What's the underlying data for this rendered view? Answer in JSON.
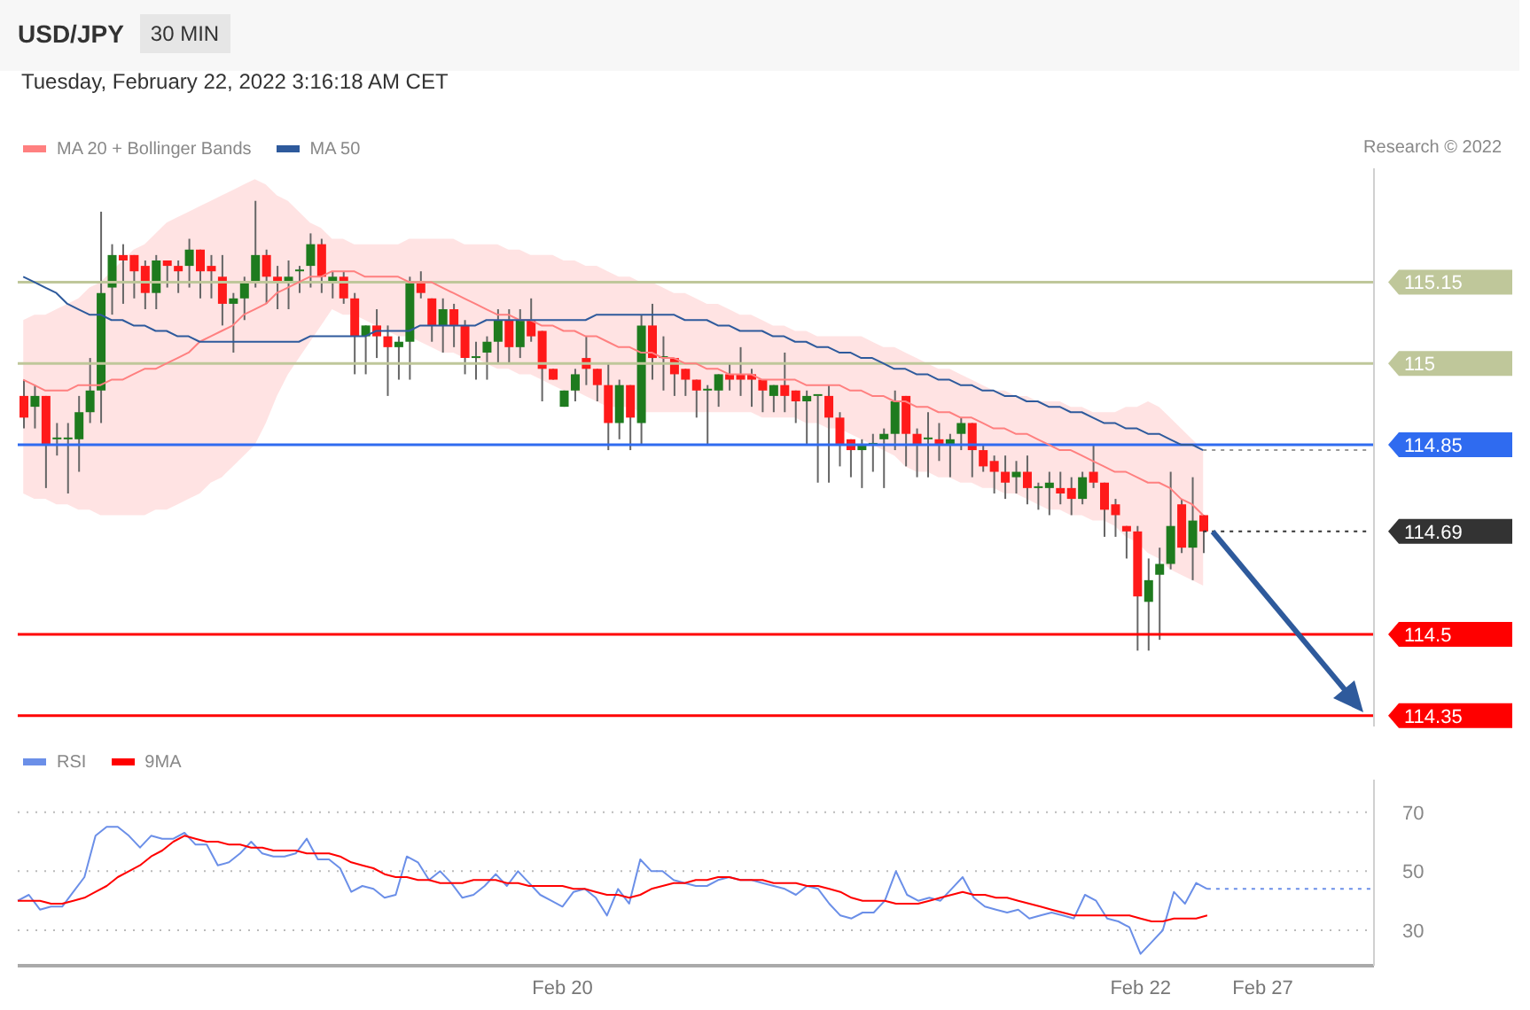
{
  "chart_data": [
    {
      "type": "candlestick",
      "title": "USD/JPY",
      "subtitle": "Tuesday, February 22, 2022 3:16:18 AM CET",
      "annotations": [
        "30 MIN",
        "Research © 2022"
      ],
      "categories": [
        null,
        null,
        null,
        null,
        null,
        null,
        null,
        null,
        null,
        null,
        null,
        null,
        null,
        null,
        null,
        null,
        null,
        null,
        null,
        null,
        null,
        null,
        null,
        null,
        null,
        null,
        null,
        null,
        null,
        null,
        null,
        null,
        null,
        null,
        null,
        null,
        null,
        null,
        null,
        null,
        null,
        null,
        null,
        null,
        null,
        null,
        null,
        null,
        null,
        null,
        null,
        null,
        null,
        null,
        null,
        null,
        null,
        null,
        null,
        null,
        null,
        null,
        null,
        null,
        null,
        null,
        null,
        null,
        null,
        null,
        null,
        null,
        null,
        null,
        null,
        null,
        null,
        null,
        null,
        null,
        null,
        null,
        null,
        null,
        null,
        null,
        null,
        null,
        null,
        null,
        null,
        null,
        null,
        null,
        null,
        null,
        null,
        null,
        null,
        null,
        null,
        null,
        null,
        null,
        null,
        null,
        null,
        null,
        null,
        null,
        null,
        null,
        null,
        null,
        null,
        null,
        null,
        null,
        null,
        null,
        null,
        null,
        null
      ],
      "ohlc": [
        [
          114.94,
          114.97,
          114.88,
          114.9
        ],
        [
          114.92,
          114.96,
          114.88,
          114.94
        ],
        [
          114.94,
          114.94,
          114.77,
          114.85
        ],
        [
          114.86,
          114.89,
          114.83,
          114.86
        ],
        [
          114.86,
          114.89,
          114.76,
          114.86
        ],
        [
          114.86,
          114.94,
          114.8,
          114.91
        ],
        [
          114.91,
          115.01,
          114.89,
          114.95
        ],
        [
          114.95,
          115.28,
          114.89,
          115.13
        ],
        [
          115.14,
          115.22,
          115.09,
          115.2
        ],
        [
          115.2,
          115.22,
          115.11,
          115.19
        ],
        [
          115.2,
          115.2,
          115.12,
          115.17
        ],
        [
          115.18,
          115.19,
          115.1,
          115.13
        ],
        [
          115.13,
          115.2,
          115.1,
          115.19
        ],
        [
          115.19,
          115.19,
          115.14,
          115.18
        ],
        [
          115.18,
          115.19,
          115.13,
          115.17
        ],
        [
          115.18,
          115.23,
          115.14,
          115.21
        ],
        [
          115.21,
          115.21,
          115.12,
          115.17
        ],
        [
          115.18,
          115.2,
          115.12,
          115.17
        ],
        [
          115.16,
          115.2,
          115.07,
          115.11
        ],
        [
          115.11,
          115.13,
          115.02,
          115.12
        ],
        [
          115.12,
          115.16,
          115.08,
          115.15
        ],
        [
          115.15,
          115.3,
          115.14,
          115.2
        ],
        [
          115.2,
          115.21,
          115.11,
          115.16
        ],
        [
          115.16,
          115.18,
          115.1,
          115.15
        ],
        [
          115.15,
          115.19,
          115.1,
          115.16
        ],
        [
          115.17,
          115.18,
          115.13,
          115.17
        ],
        [
          115.18,
          115.24,
          115.14,
          115.22
        ],
        [
          115.22,
          115.23,
          115.13,
          115.16
        ],
        [
          115.15,
          115.17,
          115.12,
          115.16
        ],
        [
          115.16,
          115.17,
          115.11,
          115.12
        ],
        [
          115.12,
          115.13,
          114.98,
          115.05
        ],
        [
          115.05,
          115.07,
          114.98,
          115.07
        ],
        [
          115.07,
          115.1,
          115.01,
          115.05
        ],
        [
          115.05,
          115.07,
          114.94,
          115.03
        ],
        [
          115.03,
          115.05,
          114.97,
          115.04
        ],
        [
          115.04,
          115.16,
          114.97,
          115.15
        ],
        [
          115.15,
          115.17,
          115.12,
          115.13
        ],
        [
          115.12,
          115.12,
          115.04,
          115.07
        ],
        [
          115.07,
          115.12,
          115.02,
          115.1
        ],
        [
          115.1,
          115.11,
          115.03,
          115.07
        ],
        [
          115.07,
          115.08,
          114.98,
          115.01
        ],
        [
          115.01,
          115.04,
          114.97,
          115.01
        ],
        [
          115.02,
          115.05,
          114.97,
          115.04
        ],
        [
          115.04,
          115.1,
          115.0,
          115.08
        ],
        [
          115.08,
          115.1,
          115.0,
          115.03
        ],
        [
          115.03,
          115.1,
          115.01,
          115.08
        ],
        [
          115.08,
          115.12,
          115.04,
          115.05
        ],
        [
          115.06,
          115.06,
          114.93,
          114.99
        ],
        [
          114.99,
          114.99,
          114.97,
          114.97
        ],
        [
          114.92,
          114.95,
          114.92,
          114.95
        ],
        [
          114.95,
          114.99,
          114.93,
          114.98
        ],
        [
          115.01,
          115.05,
          114.96,
          114.99
        ],
        [
          114.99,
          114.99,
          114.93,
          114.96
        ],
        [
          114.96,
          115.0,
          114.84,
          114.89
        ],
        [
          114.89,
          114.97,
          114.86,
          114.96
        ],
        [
          114.96,
          114.96,
          114.84,
          114.9
        ],
        [
          114.89,
          115.09,
          114.85,
          115.07
        ],
        [
          115.07,
          115.11,
          114.97,
          115.01
        ],
        [
          115.01,
          115.05,
          114.95,
          115.01
        ],
        [
          115.01,
          115.01,
          114.94,
          114.98
        ],
        [
          114.99,
          114.99,
          114.94,
          114.97
        ],
        [
          114.97,
          114.97,
          114.9,
          114.95
        ],
        [
          114.95,
          114.96,
          114.85,
          114.95
        ],
        [
          114.95,
          114.98,
          114.92,
          114.98
        ],
        [
          114.98,
          115.0,
          114.95,
          114.97
        ],
        [
          114.98,
          115.03,
          114.94,
          114.97
        ],
        [
          114.98,
          114.99,
          114.92,
          114.97
        ],
        [
          114.97,
          114.97,
          114.91,
          114.95
        ],
        [
          114.94,
          114.96,
          114.91,
          114.96
        ],
        [
          114.96,
          115.02,
          114.91,
          114.94
        ],
        [
          114.95,
          114.95,
          114.89,
          114.93
        ],
        [
          114.93,
          114.95,
          114.85,
          114.94
        ],
        [
          114.94,
          114.94,
          114.78,
          114.94
        ],
        [
          114.94,
          114.96,
          114.78,
          114.9
        ],
        [
          114.9,
          114.91,
          114.81,
          114.85
        ],
        [
          114.86,
          114.86,
          114.79,
          114.84
        ],
        [
          114.84,
          114.86,
          114.77,
          114.85
        ],
        [
          114.85,
          114.87,
          114.8,
          114.85
        ],
        [
          114.86,
          114.88,
          114.77,
          114.87
        ],
        [
          114.87,
          114.95,
          114.84,
          114.93
        ],
        [
          114.94,
          114.94,
          114.81,
          114.87
        ],
        [
          114.87,
          114.88,
          114.79,
          114.85
        ],
        [
          114.86,
          114.91,
          114.79,
          114.86
        ],
        [
          114.86,
          114.89,
          114.82,
          114.85
        ],
        [
          114.85,
          114.87,
          114.79,
          114.86
        ],
        [
          114.87,
          114.9,
          114.84,
          114.89
        ],
        [
          114.89,
          114.89,
          114.79,
          114.84
        ],
        [
          114.84,
          114.85,
          114.8,
          114.81
        ],
        [
          114.82,
          114.83,
          114.76,
          114.8
        ],
        [
          114.8,
          114.83,
          114.75,
          114.78
        ],
        [
          114.79,
          114.82,
          114.76,
          114.8
        ],
        [
          114.8,
          114.83,
          114.74,
          114.77
        ],
        [
          114.77,
          114.78,
          114.73,
          114.77
        ],
        [
          114.77,
          114.8,
          114.72,
          114.78
        ],
        [
          114.77,
          114.8,
          114.74,
          114.76
        ],
        [
          114.77,
          114.79,
          114.72,
          114.75
        ],
        [
          114.75,
          114.8,
          114.74,
          114.79
        ],
        [
          114.8,
          114.85,
          114.77,
          114.78
        ],
        [
          114.78,
          114.78,
          114.68,
          114.73
        ],
        [
          114.74,
          114.75,
          114.68,
          114.72
        ],
        [
          114.7,
          114.7,
          114.64,
          114.69
        ],
        [
          114.69,
          114.7,
          114.47,
          114.57
        ],
        [
          114.56,
          114.64,
          114.47,
          114.6
        ],
        [
          114.61,
          114.66,
          114.49,
          114.63
        ],
        [
          114.63,
          114.8,
          114.62,
          114.7
        ],
        [
          114.74,
          114.75,
          114.65,
          114.66
        ],
        [
          114.66,
          114.79,
          114.6,
          114.71
        ],
        [
          114.72,
          114.72,
          114.65,
          114.69
        ],
        null,
        null,
        null,
        null,
        null,
        null,
        null,
        null,
        null,
        null,
        null,
        null,
        null,
        null,
        null
      ],
      "series": [
        {
          "name": "MA 20 + Bollinger Bands",
          "type": "line",
          "color": "#ff8080",
          "values": [
            114.97,
            114.96,
            114.95,
            114.95,
            114.95,
            114.96,
            114.96,
            114.96,
            114.97,
            114.97,
            114.98,
            114.99,
            114.99,
            115.0,
            115.01,
            115.02,
            115.04,
            115.05,
            115.06,
            115.07,
            115.09,
            115.1,
            115.11,
            115.13,
            115.14,
            115.15,
            115.16,
            115.16,
            115.17,
            115.17,
            115.17,
            115.16,
            115.16,
            115.16,
            115.16,
            115.15,
            115.15,
            115.15,
            115.14,
            115.13,
            115.12,
            115.11,
            115.1,
            115.09,
            115.09,
            115.08,
            115.08,
            115.07,
            115.07,
            115.06,
            115.06,
            115.05,
            115.05,
            115.04,
            115.03,
            115.03,
            115.02,
            115.02,
            115.01,
            115.01,
            115.0,
            115.0,
            114.99,
            114.99,
            114.98,
            114.98,
            114.98,
            114.97,
            114.97,
            114.97,
            114.97,
            114.96,
            114.96,
            114.96,
            114.96,
            114.95,
            114.95,
            114.94,
            114.94,
            114.93,
            114.93,
            114.92,
            114.92,
            114.91,
            114.91,
            114.9,
            114.9,
            114.89,
            114.88,
            114.88,
            114.87,
            114.87,
            114.86,
            114.85,
            114.84,
            114.84,
            114.83,
            114.82,
            114.81,
            114.8,
            114.8,
            114.79,
            114.78,
            114.78,
            114.77,
            114.75,
            114.74,
            114.72,
            null,
            null,
            null,
            null,
            null,
            null,
            null,
            null,
            null,
            null,
            null,
            null,
            null,
            null,
            null
          ],
          "upper": [
            115.08,
            115.09,
            115.09,
            115.1,
            115.11,
            115.12,
            115.14,
            115.15,
            115.17,
            115.19,
            115.21,
            115.22,
            115.24,
            115.26,
            115.27,
            115.28,
            115.29,
            115.3,
            115.31,
            115.32,
            115.33,
            115.34,
            115.33,
            115.31,
            115.3,
            115.28,
            115.26,
            115.25,
            115.23,
            115.23,
            115.22,
            115.22,
            115.22,
            115.22,
            115.22,
            115.23,
            115.23,
            115.23,
            115.23,
            115.23,
            115.22,
            115.22,
            115.22,
            115.22,
            115.21,
            115.21,
            115.2,
            115.2,
            115.2,
            115.19,
            115.19,
            115.18,
            115.18,
            115.17,
            115.16,
            115.16,
            115.15,
            115.15,
            115.14,
            115.13,
            115.13,
            115.12,
            115.11,
            115.11,
            115.1,
            115.09,
            115.09,
            115.08,
            115.07,
            115.07,
            115.06,
            115.06,
            115.05,
            115.05,
            115.05,
            115.05,
            115.05,
            115.04,
            115.03,
            115.03,
            115.02,
            115.01,
            115.0,
            114.99,
            114.99,
            114.98,
            114.97,
            114.96,
            114.95,
            114.95,
            114.94,
            114.94,
            114.93,
            114.93,
            114.93,
            114.92,
            114.92,
            114.91,
            114.91,
            114.91,
            114.92,
            114.92,
            114.93,
            114.92,
            114.9,
            114.88,
            114.86,
            114.84,
            null,
            null,
            null,
            null,
            null,
            null,
            null,
            null,
            null,
            null,
            null,
            null,
            null,
            null,
            null
          ],
          "lower": [
            114.76,
            114.75,
            114.75,
            114.74,
            114.74,
            114.73,
            114.73,
            114.72,
            114.72,
            114.72,
            114.72,
            114.72,
            114.73,
            114.73,
            114.74,
            114.75,
            114.76,
            114.78,
            114.79,
            114.81,
            114.83,
            114.85,
            114.89,
            114.94,
            114.98,
            115.01,
            115.04,
            115.07,
            115.1,
            115.09,
            115.09,
            115.08,
            115.07,
            115.06,
            115.05,
            115.05,
            115.04,
            115.03,
            115.02,
            115.02,
            115.01,
            115.01,
            115.0,
            114.99,
            114.99,
            114.98,
            114.98,
            114.97,
            114.96,
            114.95,
            114.95,
            114.94,
            114.93,
            114.92,
            114.92,
            114.92,
            114.91,
            114.91,
            114.91,
            114.91,
            114.91,
            114.91,
            114.91,
            114.91,
            114.91,
            114.91,
            114.91,
            114.9,
            114.9,
            114.9,
            114.9,
            114.89,
            114.89,
            114.88,
            114.88,
            114.87,
            114.86,
            114.85,
            114.84,
            114.83,
            114.81,
            114.8,
            114.8,
            114.79,
            114.79,
            114.78,
            114.78,
            114.77,
            114.77,
            114.76,
            114.76,
            114.75,
            114.74,
            114.73,
            114.73,
            114.72,
            114.72,
            114.71,
            114.71,
            114.7,
            114.68,
            114.67,
            114.65,
            114.64,
            114.62,
            114.61,
            114.6,
            114.59,
            null,
            null,
            null,
            null,
            null,
            null,
            null,
            null,
            null,
            null,
            null,
            null,
            null,
            null,
            null
          ]
        },
        {
          "name": "MA 50",
          "type": "line",
          "color": "#2e5a9c",
          "values": [
            115.16,
            115.15,
            115.14,
            115.13,
            115.11,
            115.1,
            115.09,
            115.09,
            115.08,
            115.08,
            115.07,
            115.07,
            115.06,
            115.06,
            115.05,
            115.05,
            115.04,
            115.04,
            115.04,
            115.04,
            115.04,
            115.04,
            115.04,
            115.04,
            115.04,
            115.04,
            115.05,
            115.05,
            115.05,
            115.05,
            115.05,
            115.05,
            115.06,
            115.06,
            115.06,
            115.06,
            115.07,
            115.07,
            115.07,
            115.07,
            115.07,
            115.07,
            115.08,
            115.08,
            115.08,
            115.08,
            115.08,
            115.08,
            115.08,
            115.08,
            115.08,
            115.08,
            115.09,
            115.09,
            115.09,
            115.09,
            115.09,
            115.09,
            115.09,
            115.09,
            115.08,
            115.08,
            115.08,
            115.07,
            115.07,
            115.06,
            115.06,
            115.06,
            115.05,
            115.05,
            115.04,
            115.04,
            115.03,
            115.03,
            115.02,
            115.02,
            115.01,
            115.01,
            115.0,
            114.99,
            114.99,
            114.98,
            114.98,
            114.97,
            114.97,
            114.96,
            114.96,
            114.95,
            114.95,
            114.94,
            114.94,
            114.93,
            114.93,
            114.92,
            114.92,
            114.91,
            114.91,
            114.9,
            114.89,
            114.89,
            114.88,
            114.88,
            114.87,
            114.87,
            114.86,
            114.85,
            114.85,
            114.84,
            null,
            null,
            null,
            null,
            null,
            null,
            null,
            null,
            null,
            null,
            null,
            null,
            null,
            null,
            null
          ]
        }
      ],
      "ylim": [
        114.33,
        115.36
      ],
      "yticks": [
        114.35,
        114.5,
        114.69,
        114.85,
        115,
        115.15
      ],
      "ref_lines": [
        {
          "axis": "y",
          "value": 115.15,
          "color": "#bfc79a",
          "line_style": "solid"
        },
        {
          "axis": "y",
          "value": 115,
          "color": "#bfc79a",
          "line_style": "solid"
        },
        {
          "axis": "y",
          "value": 114.85,
          "color": "#2f6bf0",
          "line_style": "solid"
        },
        {
          "axis": "y",
          "value": 114.84,
          "color": "#999999",
          "line_style": "dotted"
        },
        {
          "axis": "y",
          "value": 114.69,
          "color": "#333333",
          "line_style": "dotted"
        },
        {
          "axis": "y",
          "value": 114.5,
          "color": "#ff0000",
          "line_style": "solid"
        },
        {
          "axis": "y",
          "value": 114.35,
          "color": "#ff0000",
          "line_style": "solid"
        }
      ],
      "legend": "top left"
    },
    {
      "type": "line",
      "categories": [
        null,
        null,
        null,
        null,
        null,
        null,
        null,
        null,
        null,
        null,
        null,
        null,
        null,
        null,
        null,
        null,
        null,
        null,
        null,
        null,
        null,
        null,
        null,
        null,
        null,
        null,
        null,
        null,
        null,
        null,
        null,
        null,
        null,
        null,
        null,
        null,
        null,
        null,
        null,
        null,
        null,
        null,
        null,
        null,
        null,
        null,
        null,
        null,
        null,
        "Feb 20",
        null,
        null,
        null,
        null,
        null,
        null,
        null,
        null,
        null,
        null,
        null,
        null,
        null,
        null,
        null,
        null,
        null,
        null,
        null,
        null,
        null,
        null,
        null,
        null,
        null,
        null,
        null,
        null,
        null,
        null,
        null,
        null,
        null,
        null,
        null,
        null,
        null,
        null,
        null,
        null,
        null,
        null,
        null,
        null,
        null,
        null,
        null,
        null,
        null,
        null,
        null,
        "Feb 22",
        null,
        null,
        null,
        null,
        null,
        null,
        null,
        null,
        null,
        null,
        "Feb 27",
        null,
        null,
        null,
        null,
        null,
        null,
        null,
        null,
        null,
        null
      ],
      "series": [
        {
          "name": "RSI",
          "color": "#6b8fe8",
          "values": [
            40,
            42,
            37,
            38,
            38,
            43,
            48,
            62,
            65,
            65,
            62,
            58,
            62,
            61,
            61,
            63,
            59,
            59,
            52,
            53,
            56,
            60,
            56,
            55,
            55,
            56,
            61,
            54,
            54,
            51,
            43,
            45,
            44,
            41,
            42,
            55,
            53,
            47,
            50,
            46,
            41,
            42,
            45,
            49,
            45,
            50,
            46,
            42,
            40,
            38,
            43,
            44,
            41,
            35,
            44,
            39,
            54,
            50,
            50,
            47,
            46,
            45,
            45,
            47,
            48,
            47,
            47,
            46,
            45,
            44,
            42,
            45,
            44,
            39,
            35,
            34,
            36,
            36,
            40,
            50,
            42,
            40,
            41,
            40,
            44,
            48,
            41,
            38,
            37,
            36,
            37,
            34,
            35,
            36,
            35,
            34,
            42,
            40,
            34,
            33,
            31,
            22,
            26,
            30,
            43,
            39,
            46,
            44,
            null,
            null,
            null,
            null,
            null,
            null,
            null,
            null,
            null,
            null,
            null,
            null,
            null,
            null,
            null
          ]
        },
        {
          "name": "9MA",
          "color": "#ff0000",
          "values": [
            40,
            40,
            40,
            39,
            39,
            40,
            41,
            43,
            45,
            48,
            50,
            52,
            55,
            57,
            60,
            62,
            61,
            60,
            60,
            59,
            59,
            58,
            58,
            57,
            57,
            57,
            56,
            56,
            56,
            55,
            53,
            52,
            51,
            49,
            48,
            48,
            47,
            47,
            46,
            46,
            46,
            47,
            47,
            47,
            46,
            46,
            45,
            45,
            45,
            45,
            44,
            44,
            43,
            42,
            42,
            41,
            42,
            44,
            45,
            46,
            46,
            47,
            47,
            48,
            48,
            47,
            47,
            47,
            46,
            46,
            46,
            45,
            45,
            44,
            43,
            41,
            40,
            40,
            40,
            39,
            39,
            39,
            40,
            41,
            42,
            43,
            42,
            42,
            41,
            41,
            40,
            39,
            38,
            37,
            36,
            35,
            35,
            35,
            35,
            35,
            35,
            34,
            33,
            33,
            34,
            34,
            34,
            35,
            null,
            null,
            null,
            null,
            null,
            null,
            null,
            null,
            null,
            null,
            null,
            null,
            null,
            null,
            null
          ]
        }
      ],
      "ylim": [
        18,
        81
      ],
      "yticks": [
        30,
        50,
        70
      ],
      "grid": "y",
      "ref_lines": [
        {
          "axis": "y",
          "value": 44,
          "color": "#6b8fe8",
          "line_style": "dotted"
        }
      ],
      "legend": "top left"
    }
  ]
}
